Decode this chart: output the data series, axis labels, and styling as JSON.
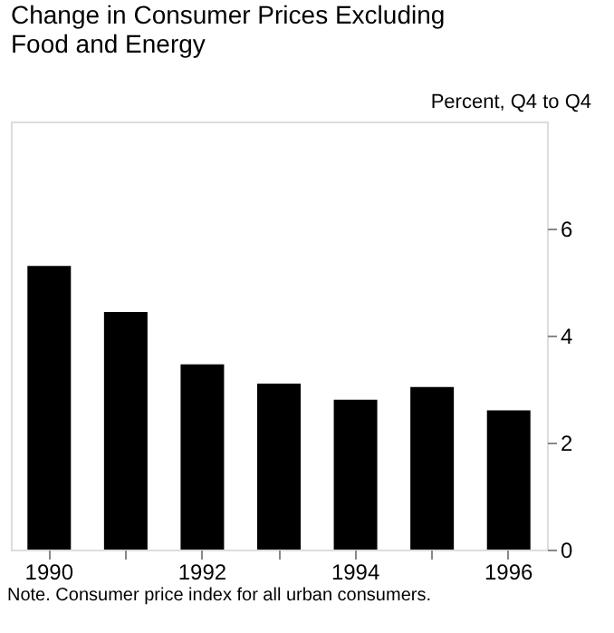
{
  "chart_data": {
    "type": "bar",
    "title": "Change in Consumer Prices Excluding Food and Energy",
    "ylabel": "Percent, Q4 to Q4",
    "categories": [
      "1990",
      null,
      "1992",
      null,
      "1994",
      null,
      "1996"
    ],
    "values": [
      5.3,
      4.44,
      3.46,
      3.1,
      2.8,
      3.04,
      2.6
    ],
    "color": "#000000",
    "ylim": [
      0,
      8
    ],
    "yticks": [
      0,
      2,
      4,
      6
    ],
    "grid": false,
    "annotations": [
      "Note.  Consumer price index for all urban consumers."
    ]
  }
}
